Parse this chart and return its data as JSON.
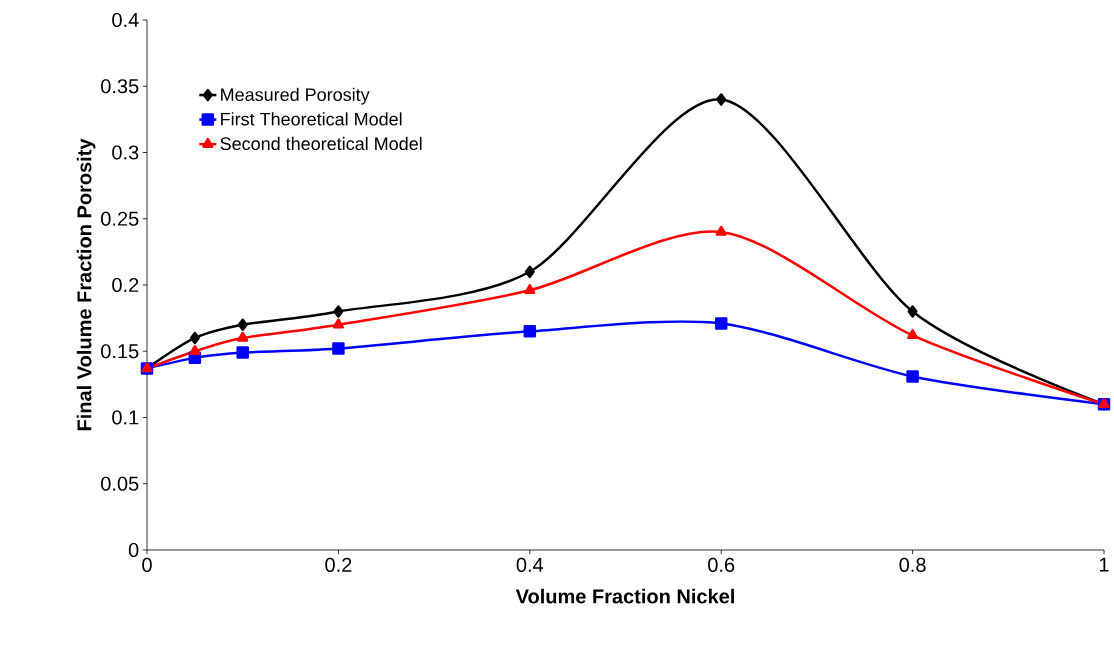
{
  "chart_data": {
    "type": "line",
    "xlabel": "Volume Fraction Nickel",
    "ylabel": "Final Volume Fraction Porosity",
    "x": [
      0,
      0.05,
      0.1,
      0.2,
      0.4,
      0.6,
      0.8,
      1
    ],
    "series": [
      {
        "name": "Measured Porosity",
        "color": "#000000",
        "marker": "diamond",
        "values": [
          0.137,
          0.16,
          0.17,
          0.18,
          0.21,
          0.34,
          0.18,
          0.11
        ]
      },
      {
        "name": "First Theoretical Model",
        "color": "#0000ff",
        "marker": "square",
        "values": [
          0.137,
          0.145,
          0.149,
          0.152,
          0.165,
          0.171,
          0.131,
          0.11
        ]
      },
      {
        "name": "Second theoretical Model",
        "color": "#ff0000",
        "marker": "triangle",
        "values": [
          0.137,
          0.15,
          0.16,
          0.17,
          0.196,
          0.24,
          0.162,
          0.11
        ]
      }
    ],
    "xlim": [
      0,
      1
    ],
    "ylim": [
      0,
      0.4
    ],
    "xticks": [
      0,
      0.2,
      0.4,
      0.6,
      0.8,
      1
    ],
    "yticks": [
      0,
      0.05,
      0.1,
      0.15,
      0.2,
      0.25,
      0.3,
      0.35,
      0.4
    ],
    "grid": false,
    "legend": "top left",
    "line_style": "solid"
  }
}
